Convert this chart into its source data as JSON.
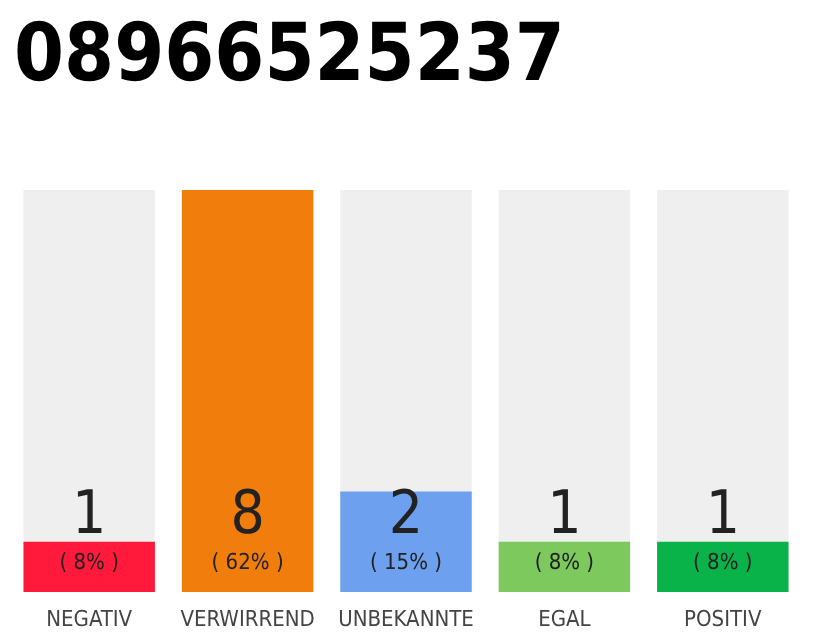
{
  "chart_data": {
    "type": "bar",
    "title": "08966525237",
    "categories": [
      "NEGATIV",
      "VERWIRREND",
      "UNBEKANNTE",
      "EGAL",
      "POSITIV"
    ],
    "values": [
      1,
      8,
      2,
      1,
      1
    ],
    "colors": [
      "#ff1a3c",
      "#f07d0c",
      "#6da0ef",
      "#7dc95e",
      "#0ab34a"
    ],
    "value_labels": [
      "1\n( 8% )",
      "8\n( 62% )",
      "2\n( 15% )",
      "1\n( 8% )",
      "1\n( 8% )"
    ]
  }
}
